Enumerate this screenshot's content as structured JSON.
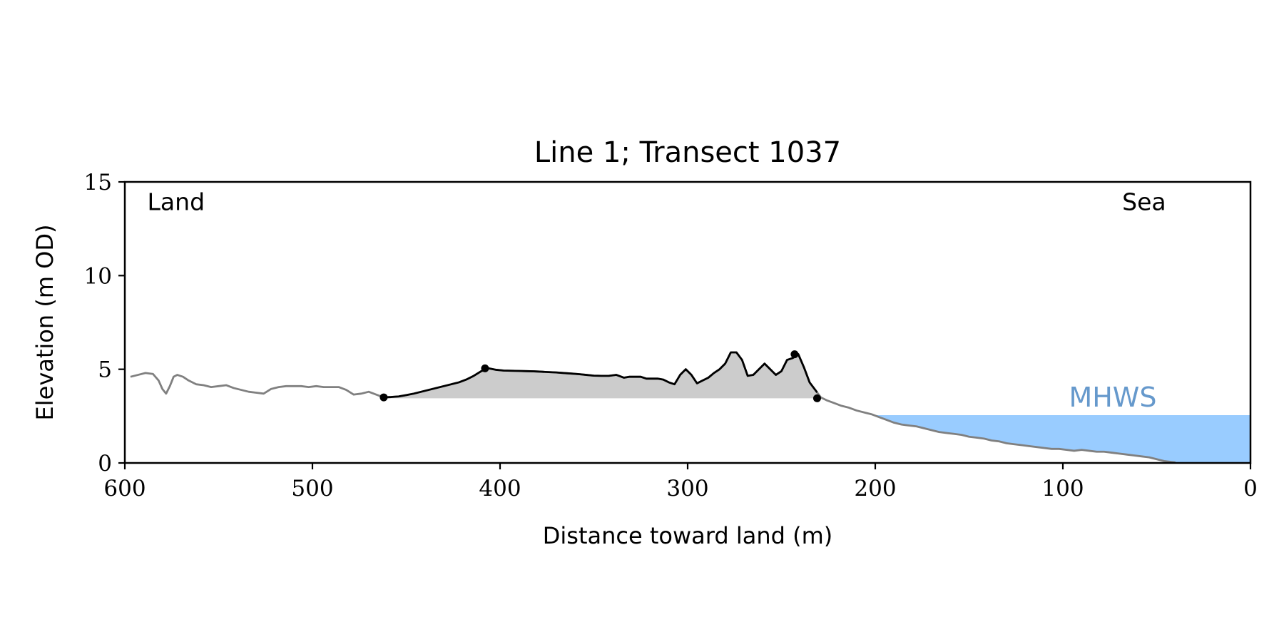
{
  "chart_data": {
    "type": "line",
    "title": "Line 1; Transect 1037",
    "xlabel": "Distance toward land (m)",
    "ylabel": "Elevation (m OD)",
    "xlim": [
      600,
      0
    ],
    "ylim": [
      0,
      15
    ],
    "x_ticks": [
      600,
      500,
      400,
      300,
      200,
      100,
      0
    ],
    "y_ticks": [
      0,
      5,
      10,
      15
    ],
    "x_tick_labels": [
      "600",
      "500",
      "400",
      "300",
      "200",
      "100",
      "0"
    ],
    "y_tick_labels": [
      "0",
      "5",
      "10",
      "15"
    ],
    "grid": false,
    "annotations": [
      {
        "id": "land",
        "text": "Land",
        "x": 588,
        "y": 13.5
      },
      {
        "id": "sea",
        "text": "Sea",
        "x": 45,
        "y": 13.5,
        "anchor": "end"
      }
    ],
    "mhws": {
      "label": "MHWS",
      "level": 2.55,
      "x_from": 200,
      "x_to": 0,
      "label_x": 50,
      "label_y": 3.0,
      "color": "#99ccff",
      "label_color": "#6699cc"
    },
    "profile": {
      "color": "#808080",
      "x": [
        597,
        593,
        589,
        585,
        582,
        580,
        578,
        576,
        574,
        572,
        569,
        566,
        562,
        558,
        554,
        550,
        546,
        542,
        538,
        534,
        530,
        526,
        522,
        518,
        514,
        510,
        506,
        502,
        498,
        494,
        490,
        486,
        482,
        478,
        474,
        470,
        466,
        462,
        458,
        454,
        450,
        446,
        442,
        438,
        434,
        430,
        426,
        422,
        418,
        414,
        410,
        406,
        402,
        398,
        394,
        390,
        386,
        382,
        378,
        374,
        370,
        366,
        362,
        358,
        354,
        350,
        346,
        342,
        338,
        334,
        331,
        328,
        325,
        322,
        319,
        316,
        313,
        310,
        307,
        304,
        301,
        298,
        295,
        292,
        289,
        286,
        283,
        280,
        277,
        274,
        271,
        268,
        265,
        262,
        259,
        256,
        253,
        250,
        247,
        244,
        241,
        238,
        235,
        232,
        229,
        226,
        222,
        218,
        214,
        210,
        206,
        202,
        198,
        194,
        190,
        186,
        182,
        178,
        174,
        170,
        166,
        162,
        158,
        154,
        150,
        146,
        142,
        138,
        134,
        130,
        126,
        122,
        118,
        114,
        110,
        106,
        102,
        98,
        94,
        90,
        86,
        82,
        78,
        74,
        70,
        66,
        62,
        58,
        54,
        50,
        46,
        42,
        40
      ],
      "y": [
        4.6,
        4.7,
        4.8,
        4.75,
        4.4,
        3.95,
        3.7,
        4.1,
        4.6,
        4.7,
        4.6,
        4.4,
        4.2,
        4.15,
        4.05,
        4.1,
        4.15,
        4.0,
        3.9,
        3.8,
        3.75,
        3.7,
        3.95,
        4.05,
        4.1,
        4.1,
        4.1,
        4.05,
        4.1,
        4.05,
        4.05,
        4.05,
        3.9,
        3.65,
        3.7,
        3.8,
        3.65,
        3.5,
        3.52,
        3.55,
        3.62,
        3.7,
        3.8,
        3.9,
        4.0,
        4.1,
        4.2,
        4.3,
        4.45,
        4.65,
        4.9,
        5.05,
        4.97,
        4.93,
        4.92,
        4.91,
        4.9,
        4.89,
        4.87,
        4.85,
        4.83,
        4.8,
        4.77,
        4.74,
        4.7,
        4.66,
        4.65,
        4.65,
        4.7,
        4.55,
        4.6,
        4.6,
        4.6,
        4.5,
        4.5,
        4.5,
        4.45,
        4.3,
        4.2,
        4.7,
        5.0,
        4.7,
        4.25,
        4.4,
        4.55,
        4.8,
        5.0,
        5.3,
        5.9,
        5.9,
        5.5,
        4.65,
        4.7,
        5.0,
        5.3,
        5.0,
        4.7,
        4.9,
        5.5,
        5.6,
        5.8,
        5.1,
        4.3,
        3.9,
        3.5,
        3.35,
        3.2,
        3.05,
        2.95,
        2.8,
        2.7,
        2.6,
        2.45,
        2.3,
        2.15,
        2.05,
        2.0,
        1.95,
        1.85,
        1.75,
        1.65,
        1.6,
        1.55,
        1.5,
        1.4,
        1.35,
        1.3,
        1.2,
        1.15,
        1.05,
        1.0,
        0.95,
        0.9,
        0.85,
        0.8,
        0.75,
        0.75,
        0.7,
        0.65,
        0.7,
        0.65,
        0.6,
        0.6,
        0.55,
        0.5,
        0.45,
        0.4,
        0.35,
        0.3,
        0.2,
        0.1,
        0.05,
        0.03
      ]
    },
    "dune": {
      "color": "#000000",
      "fill_color": "#cccccc",
      "base_level": 3.45,
      "x_start": 462,
      "x_end": 231,
      "points": [
        {
          "x": 462,
          "y": 3.5
        },
        {
          "x": 408,
          "y": 5.05
        },
        {
          "x": 243,
          "y": 5.8
        },
        {
          "x": 231,
          "y": 3.45
        }
      ]
    }
  }
}
